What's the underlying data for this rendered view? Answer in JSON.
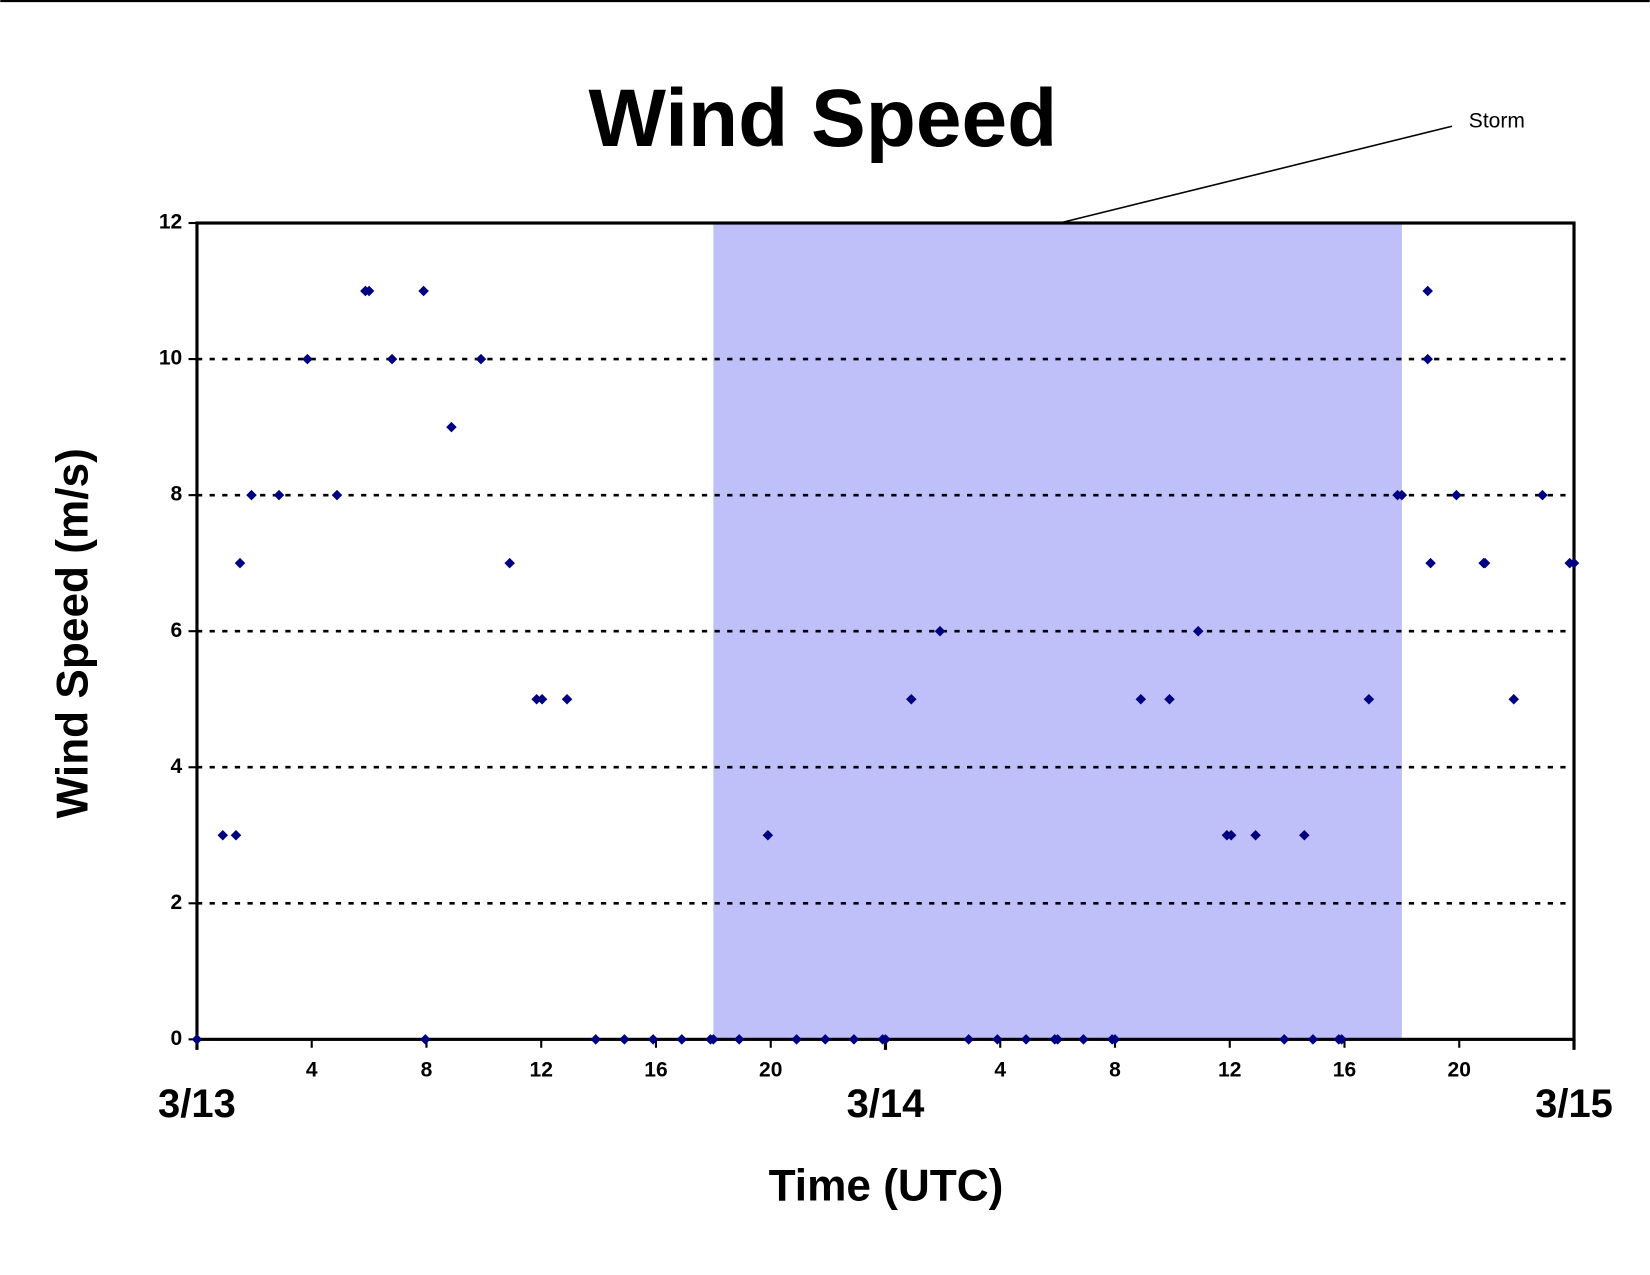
{
  "chart_data": {
    "type": "scatter",
    "title": "Wind Speed",
    "x_label": "Time (UTC)",
    "y_label": "Wind Speed (m/s)",
    "xlim": [
      0,
      48
    ],
    "ylim": [
      0,
      12
    ],
    "yticks": [
      0,
      2,
      4,
      6,
      8,
      10,
      12
    ],
    "xticks": [
      4,
      8,
      12,
      16,
      20,
      {
        "value": 28,
        "label": "4"
      },
      {
        "value": 32,
        "label": "8"
      },
      {
        "value": 36,
        "label": "12"
      },
      {
        "value": 40,
        "label": "16"
      },
      {
        "value": 44,
        "label": "20"
      }
    ],
    "day_labels": [
      {
        "value": 0,
        "label": "3/13"
      },
      {
        "value": 24,
        "label": "3/14"
      },
      {
        "value": 48,
        "label": "3/15"
      }
    ],
    "grid": true,
    "storm": {
      "label": "Storm",
      "start": 18,
      "end": 42,
      "color": "#bfbff9"
    },
    "series": [
      {
        "color": "#000080",
        "x": [
          0,
          0.9,
          1.36,
          1.5,
          1.9,
          2.86,
          3.85,
          4.88,
          5.87,
          6.0,
          6.8,
          7.9,
          7.96,
          8.87,
          9.9,
          10.9,
          11.84,
          12.03,
          12.9,
          13.9,
          14.9,
          15.9,
          16.9,
          17.9,
          18.0,
          18.9,
          19.9,
          20.9,
          21.9,
          22.9,
          23.9,
          24,
          24.9,
          25.9,
          26.9,
          27.9,
          28.9,
          29.9,
          30,
          30.9,
          31.9,
          32,
          32.9,
          33.9,
          34.9,
          35.9,
          36.05,
          36.9,
          37.9,
          38.6,
          38.9,
          39.8,
          39.9,
          40.85,
          41.85,
          42.0,
          42.9,
          42.9,
          43.0,
          43.9,
          44.85,
          44.9,
          45.9,
          46.9,
          47.85,
          48
        ],
        "values": [
          0,
          3,
          3,
          7,
          8,
          8,
          10,
          8,
          11,
          11,
          10,
          11,
          0,
          9,
          10,
          7,
          5,
          5,
          5,
          0,
          0,
          0,
          0,
          0,
          0,
          0,
          3,
          0,
          0,
          0,
          0,
          0,
          5,
          6,
          0,
          0,
          0,
          0,
          0,
          0,
          0,
          0,
          5,
          5,
          6,
          3,
          3,
          3,
          0,
          3,
          0,
          0,
          0,
          5,
          8,
          8,
          11,
          10,
          7,
          8,
          7,
          7,
          5,
          8,
          7,
          7
        ]
      }
    ]
  }
}
